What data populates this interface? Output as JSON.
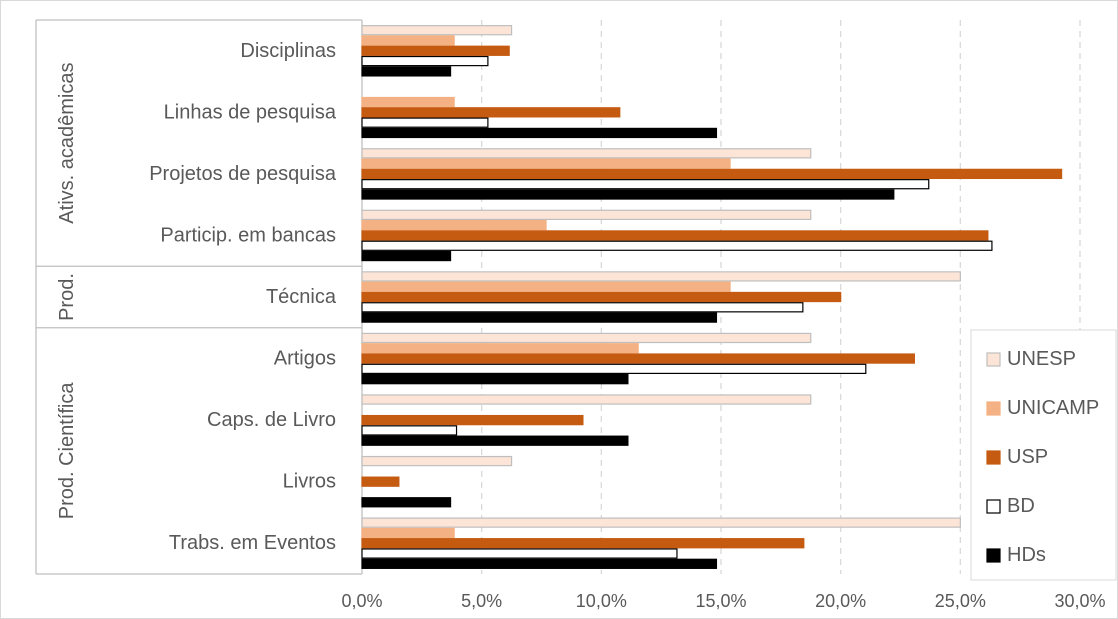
{
  "chart_data": {
    "type": "bar",
    "orientation": "horizontal",
    "groups": [
      {
        "name": "Ativs. acadêmicas",
        "categories": [
          "Disciplinas",
          "Linhas de pesquisa",
          "Projetos de pesquisa",
          "Particip. em bancas"
        ]
      },
      {
        "name": "Prod.",
        "categories": [
          "Técnica"
        ]
      },
      {
        "name": "Prod. Científica",
        "categories": [
          "Artigos",
          "Caps. de Livro",
          "Livros",
          "Trabs. em Eventos"
        ]
      }
    ],
    "categories": [
      "Disciplinas",
      "Linhas de pesquisa",
      "Projetos de pesquisa",
      "Particip. em bancas",
      "Técnica",
      "Artigos",
      "Caps. de Livro",
      "Livros",
      "Trabs. em Eventos"
    ],
    "series": [
      {
        "name": "UNESP",
        "color": "#FCE4D6",
        "stroke": "#BFBFBF",
        "values": [
          6.25,
          0,
          18.75,
          18.75,
          25.0,
          18.75,
          18.75,
          6.25,
          25.0
        ]
      },
      {
        "name": "UNICAMP",
        "color": "#F4B183",
        "stroke": "#F4B183",
        "values": [
          3.85,
          3.85,
          15.38,
          7.69,
          15.38,
          11.54,
          0,
          0,
          3.85
        ]
      },
      {
        "name": "USP",
        "color": "#C55A11",
        "stroke": "#C55A11",
        "values": [
          6.15,
          10.77,
          29.23,
          26.15,
          20.0,
          23.08,
          9.23,
          1.54,
          18.46
        ]
      },
      {
        "name": "BD",
        "color": "#FFFFFF",
        "stroke": "#000000",
        "values": [
          5.26,
          5.26,
          23.68,
          26.32,
          18.42,
          21.05,
          3.95,
          0,
          13.16
        ]
      },
      {
        "name": "HDs",
        "color": "#000000",
        "stroke": "#000000",
        "values": [
          3.7,
          14.81,
          22.22,
          3.7,
          14.81,
          11.11,
          11.11,
          3.7,
          14.81
        ]
      }
    ],
    "xlim": [
      0,
      30
    ],
    "xticks": [
      0,
      5,
      10,
      15,
      20,
      25,
      30
    ],
    "xtick_labels": [
      "0,0%",
      "5,0%",
      "10,0%",
      "15,0%",
      "20,0%",
      "25,0%",
      "30,0%"
    ],
    "grid": "vertical-dashed",
    "legend_position": "right"
  }
}
